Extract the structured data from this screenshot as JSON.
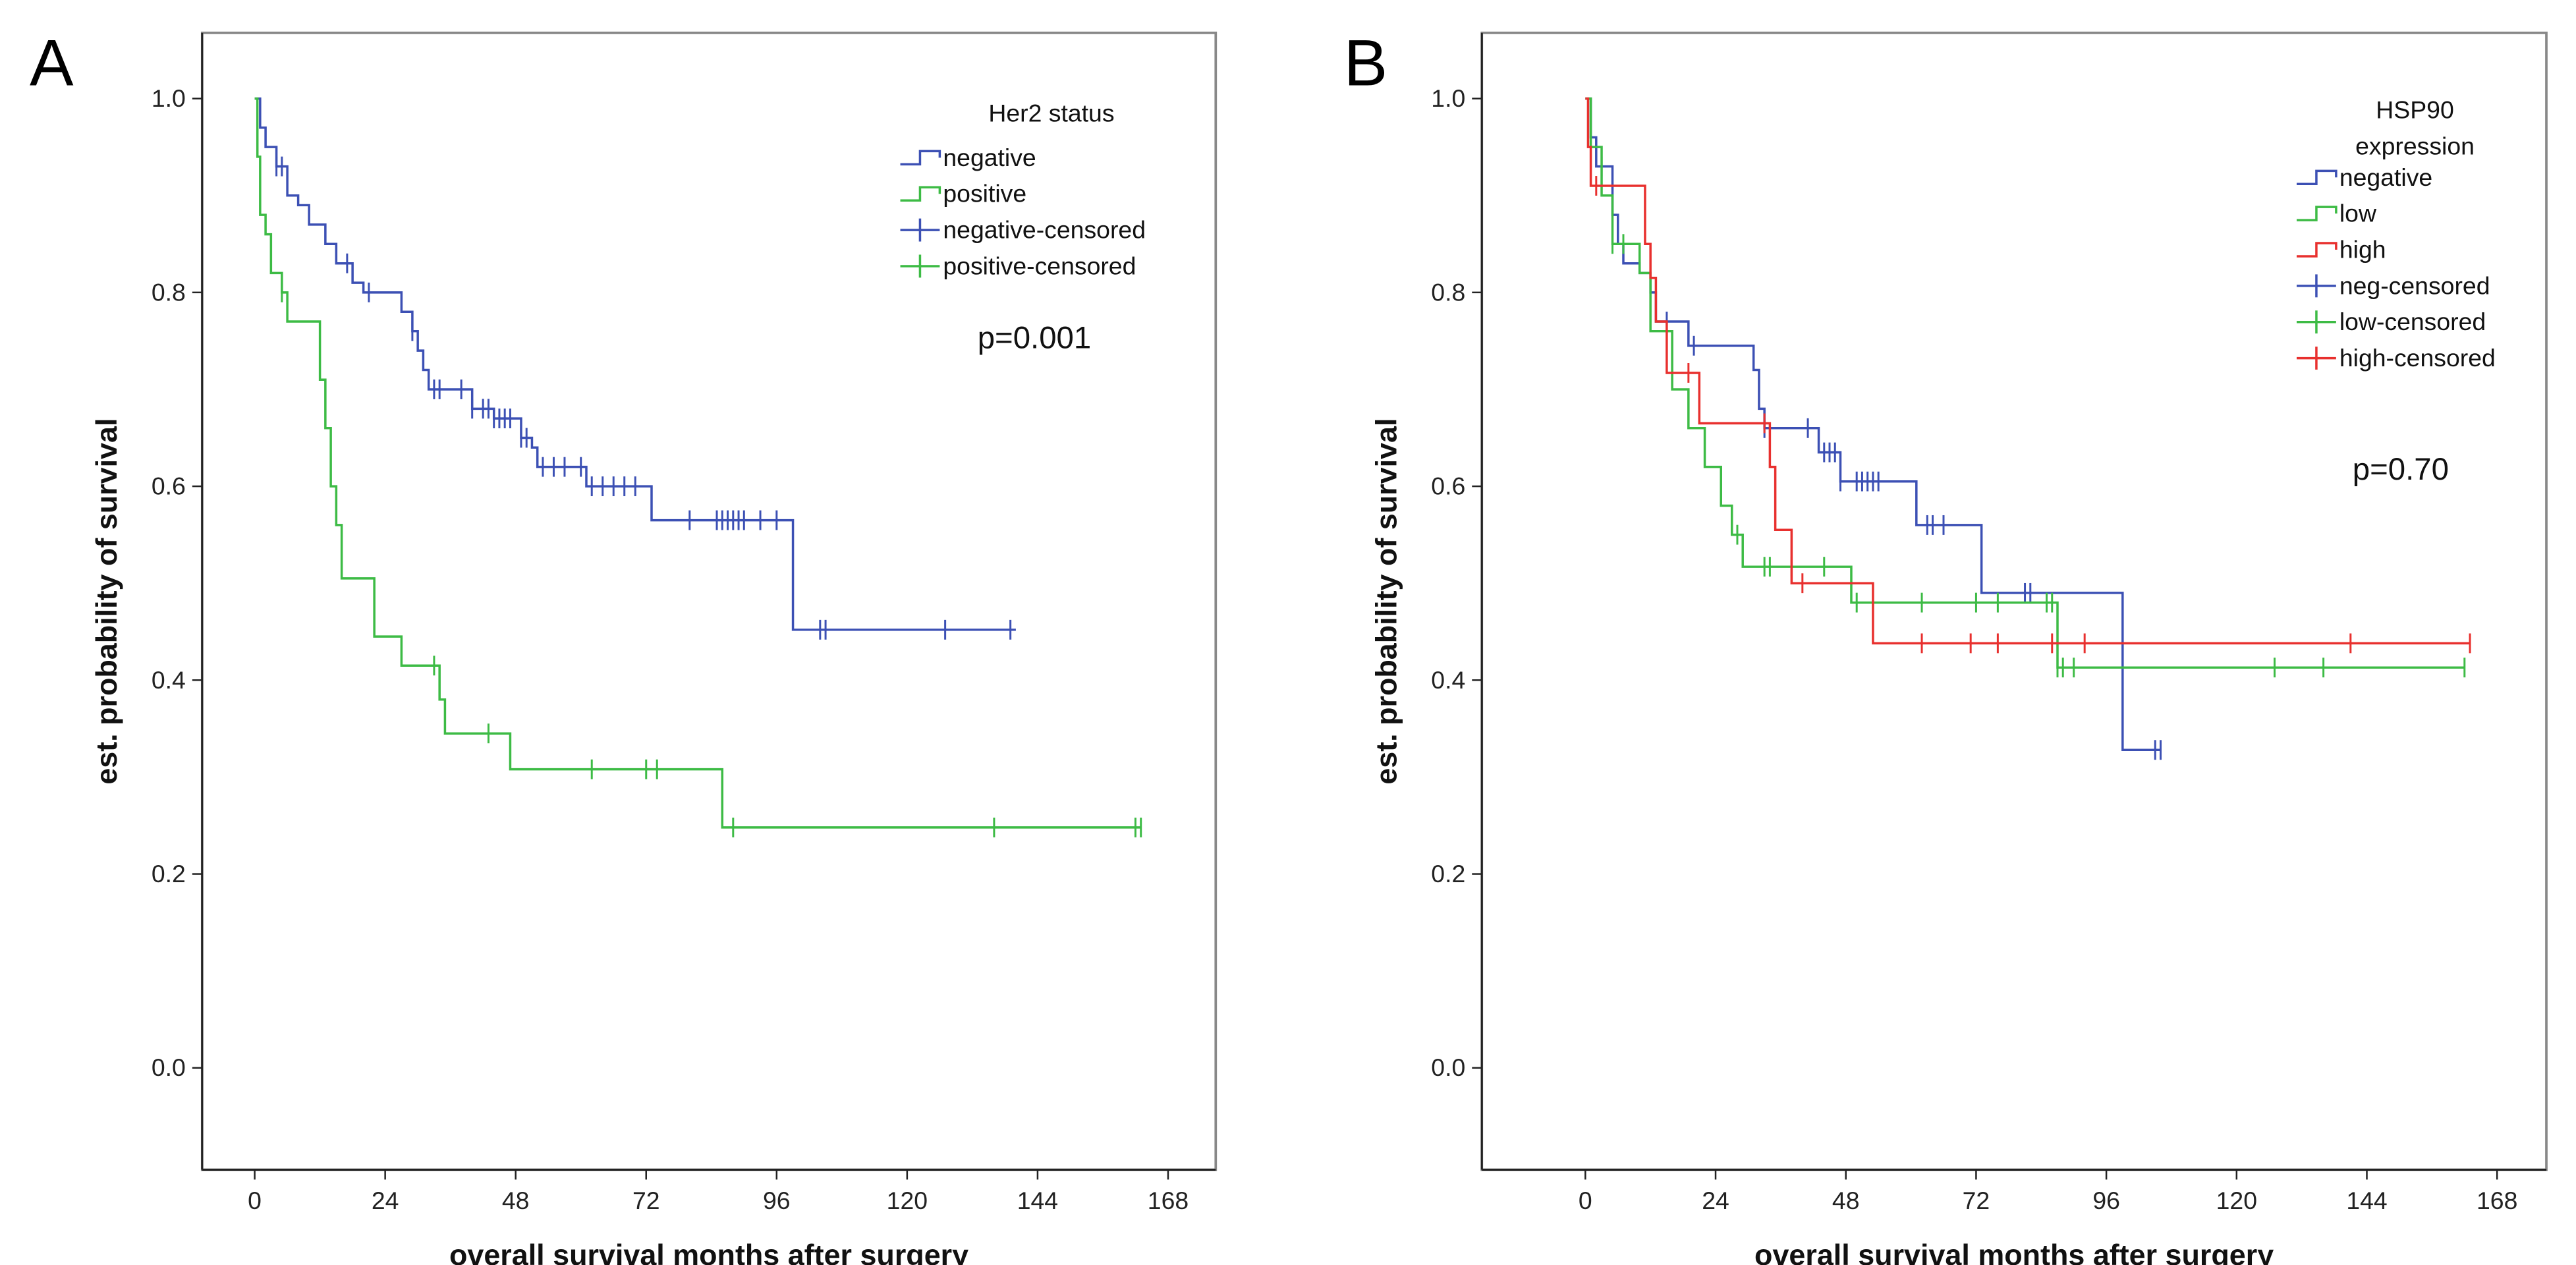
{
  "chart_data": [
    {
      "type": "line",
      "panel_label": "A",
      "title": "",
      "xlabel": "overall survival months after surgery",
      "ylabel": "est. probability of survival",
      "xlim": [
        0,
        168
      ],
      "ylim": [
        0,
        1
      ],
      "xticks": [
        0,
        24,
        48,
        72,
        96,
        120,
        144,
        168
      ],
      "xtick_labels": [
        "0",
        "24",
        "48",
        "72",
        "96",
        "120",
        "144",
        "168"
      ],
      "yticks": [
        0,
        0.2,
        0.4,
        0.6,
        0.8,
        1.0
      ],
      "ytick_labels": [
        "0.0",
        "0.2",
        "0.4",
        "0.6",
        "0.8",
        "1.0"
      ],
      "legend_title": "Her2 status",
      "legend_position": "top-right",
      "legend_entries": [
        "negative",
        "positive",
        "negative-censored",
        "positive-censored"
      ],
      "annotation": "p=0.001",
      "grid": false,
      "series": [
        {
          "name": "negative",
          "color": "#3c50b4",
          "steps": [
            [
              0,
              1.0
            ],
            [
              1,
              0.97
            ],
            [
              2,
              0.95
            ],
            [
              4,
              0.93
            ],
            [
              6,
              0.9
            ],
            [
              8,
              0.89
            ],
            [
              10,
              0.87
            ],
            [
              13,
              0.85
            ],
            [
              15,
              0.83
            ],
            [
              18,
              0.81
            ],
            [
              20,
              0.8
            ],
            [
              27,
              0.78
            ],
            [
              29,
              0.76
            ],
            [
              30,
              0.74
            ],
            [
              31,
              0.72
            ],
            [
              32,
              0.7
            ],
            [
              40,
              0.68
            ],
            [
              44,
              0.67
            ],
            [
              49,
              0.65
            ],
            [
              51,
              0.64
            ],
            [
              52,
              0.62
            ],
            [
              61,
              0.6
            ],
            [
              73,
              0.565
            ],
            [
              99,
              0.452
            ]
          ],
          "end": 140,
          "censored": [
            4,
            5,
            17,
            21,
            29,
            33,
            34,
            38,
            40,
            42,
            43,
            44,
            45,
            46,
            47,
            49,
            50,
            53,
            55,
            57,
            60,
            62,
            64,
            66,
            68,
            70,
            80,
            85,
            86,
            87,
            88,
            89,
            90,
            93,
            96,
            104,
            105,
            127,
            139
          ]
        },
        {
          "name": "positive",
          "color": "#3dbb45",
          "steps": [
            [
              0,
              1.0
            ],
            [
              0.5,
              0.94
            ],
            [
              1,
              0.88
            ],
            [
              2,
              0.86
            ],
            [
              3,
              0.82
            ],
            [
              5,
              0.8
            ],
            [
              6,
              0.77
            ],
            [
              12,
              0.71
            ],
            [
              13,
              0.66
            ],
            [
              14,
              0.6
            ],
            [
              15,
              0.56
            ],
            [
              16,
              0.505
            ],
            [
              22,
              0.445
            ],
            [
              27,
              0.415
            ],
            [
              34,
              0.38
            ],
            [
              35,
              0.345
            ],
            [
              47,
              0.308
            ],
            [
              86,
              0.248
            ]
          ],
          "end": 163,
          "censored": [
            5,
            33,
            43,
            62,
            72,
            74,
            88,
            136,
            162,
            163
          ]
        }
      ]
    },
    {
      "type": "line",
      "panel_label": "B",
      "title": "",
      "xlabel": "overall survival months after surgery",
      "ylabel": "est. probability of survival",
      "xlim": [
        0,
        168
      ],
      "ylim": [
        0,
        1
      ],
      "xticks": [
        0,
        24,
        48,
        72,
        96,
        120,
        144,
        168
      ],
      "xtick_labels": [
        "0",
        "24",
        "48",
        "72",
        "96",
        "120",
        "144",
        "168"
      ],
      "yticks": [
        0,
        0.2,
        0.4,
        0.6,
        0.8,
        1.0
      ],
      "ytick_labels": [
        "0.0",
        "0.2",
        "0.4",
        "0.6",
        "0.8",
        "1.0"
      ],
      "legend_title": [
        "HSP90",
        "expression"
      ],
      "legend_position": "top-right",
      "legend_entries": [
        "negative",
        "low",
        "high",
        "neg-censored",
        "low-censored",
        "high-censored"
      ],
      "annotation": "p=0.70",
      "grid": false,
      "series": [
        {
          "name": "negative",
          "color": "#3c50b4",
          "steps": [
            [
              0,
              1.0
            ],
            [
              1,
              0.96
            ],
            [
              2,
              0.93
            ],
            [
              5,
              0.88
            ],
            [
              6,
              0.85
            ],
            [
              7,
              0.83
            ],
            [
              10,
              0.82
            ],
            [
              12,
              0.8
            ],
            [
              13,
              0.77
            ],
            [
              19,
              0.745
            ],
            [
              31,
              0.72
            ],
            [
              32,
              0.68
            ],
            [
              33,
              0.66
            ],
            [
              43,
              0.635
            ],
            [
              47,
              0.605
            ],
            [
              61,
              0.56
            ],
            [
              73,
              0.49
            ],
            [
              99,
              0.328
            ]
          ],
          "end": 106,
          "censored": [
            3,
            15,
            20,
            33,
            41,
            44,
            45,
            46,
            47,
            50,
            51,
            52,
            53,
            54,
            63,
            64,
            66,
            81,
            82,
            106,
            105
          ]
        },
        {
          "name": "low",
          "color": "#3dbb45",
          "steps": [
            [
              0,
              1.0
            ],
            [
              1,
              0.95
            ],
            [
              3,
              0.9
            ],
            [
              5,
              0.85
            ],
            [
              10,
              0.82
            ],
            [
              12,
              0.76
            ],
            [
              16,
              0.7
            ],
            [
              19,
              0.66
            ],
            [
              22,
              0.62
            ],
            [
              25,
              0.58
            ],
            [
              27,
              0.55
            ],
            [
              29,
              0.517
            ],
            [
              49,
              0.48
            ],
            [
              87,
              0.413
            ]
          ],
          "end": 162,
          "censored": [
            5,
            7,
            28,
            33,
            34,
            38,
            44,
            50,
            62,
            72,
            76,
            85,
            86,
            87,
            88,
            90,
            127,
            136,
            162
          ]
        },
        {
          "name": "high",
          "color": "#e8302e",
          "steps": [
            [
              0,
              1.0
            ],
            [
              0.5,
              0.95
            ],
            [
              1,
              0.91
            ],
            [
              11,
              0.85
            ],
            [
              12,
              0.815
            ],
            [
              13,
              0.77
            ],
            [
              15,
              0.717
            ],
            [
              21,
              0.665
            ],
            [
              34,
              0.62
            ],
            [
              35,
              0.555
            ],
            [
              38,
              0.5
            ],
            [
              53,
              0.438
            ]
          ],
          "end": 163,
          "censored": [
            2,
            19,
            33,
            40,
            62,
            71,
            76,
            86,
            92,
            141,
            163
          ]
        }
      ]
    }
  ]
}
